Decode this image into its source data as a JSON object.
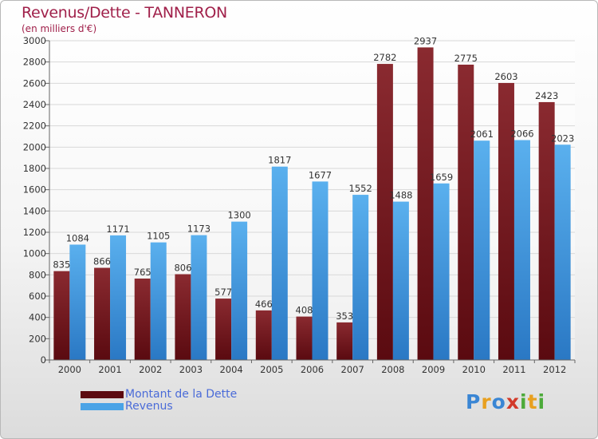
{
  "header": {
    "title": "Revenus/Dette - TANNERON",
    "subtitle": "(en milliers d'€)"
  },
  "chart_data": {
    "type": "bar",
    "title": "Revenus/Dette - TANNERON",
    "subtitle": "(en milliers d'€)",
    "categories": [
      "2000",
      "2001",
      "2002",
      "2003",
      "2004",
      "2005",
      "2006",
      "2007",
      "2008",
      "2009",
      "2010",
      "2011",
      "2012"
    ],
    "series": [
      {
        "name": "Montant de la Dette",
        "color": "#7a1a24",
        "values": [
          835,
          866,
          765,
          806,
          577,
          466,
          408,
          353,
          2782,
          2937,
          2775,
          2603,
          2423
        ]
      },
      {
        "name": "Revenus",
        "color": "#4aa3e6",
        "values": [
          1084,
          1171,
          1105,
          1173,
          1300,
          1817,
          1677,
          1552,
          1488,
          1659,
          2061,
          2066,
          2023
        ]
      }
    ],
    "ylim": [
      0,
      3000
    ],
    "yticks": [
      0,
      200,
      400,
      600,
      800,
      1000,
      1200,
      1400,
      1600,
      1800,
      2000,
      2200,
      2400,
      2600,
      2800,
      3000
    ],
    "grid": true,
    "legend": "bottom-left"
  },
  "legend": {
    "items": [
      {
        "label": "Montant de la Dette",
        "color": "#5c0a10"
      },
      {
        "label": "Revenus",
        "color": "#4aa3e6"
      }
    ]
  },
  "logo": {
    "text": "Proxiti",
    "letters": [
      {
        "ch": "P",
        "color": "#3a86d4"
      },
      {
        "ch": "r",
        "color": "#e8a020"
      },
      {
        "ch": "o",
        "color": "#3a86d4"
      },
      {
        "ch": "x",
        "color": "#d23a2a"
      },
      {
        "ch": "i",
        "color": "#4caa3a"
      },
      {
        "ch": "t",
        "color": "#e8a020"
      },
      {
        "ch": "i",
        "color": "#4caa3a"
      }
    ]
  }
}
